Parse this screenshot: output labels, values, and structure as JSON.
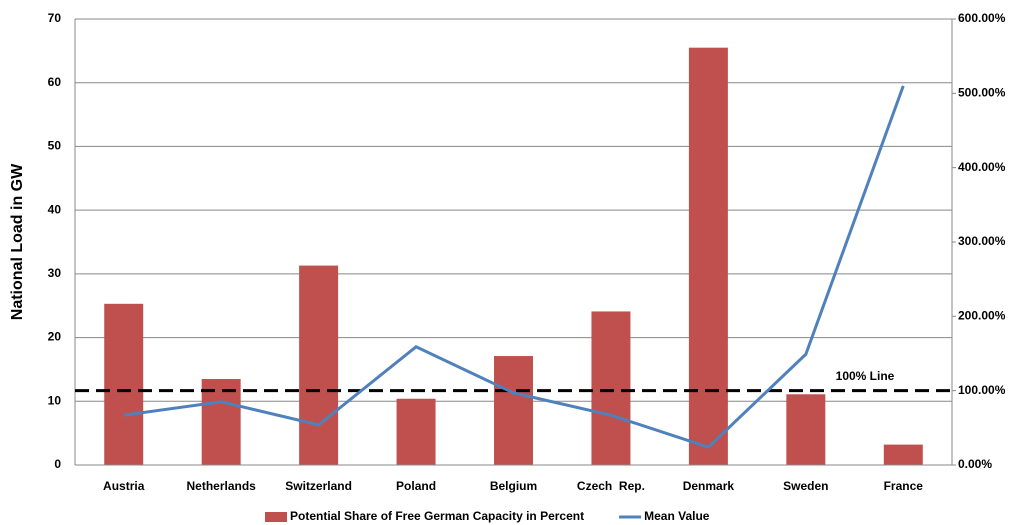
{
  "chart_data": {
    "type": "bar_line",
    "y_label": "National Load in GW",
    "categories": [
      "Austria",
      "Netherlands",
      "Switzerland",
      "Poland",
      "Belgium",
      "Czech  Rep.",
      "Denmark",
      "Sweden",
      "France"
    ],
    "series": [
      {
        "name": "Potential Share of Free German Capacity in Percent",
        "type": "bar",
        "color": "#c0504d",
        "values": [
          25.3,
          13.5,
          31.3,
          10.4,
          17.1,
          24.1,
          65.5,
          11.1,
          3.2
        ]
      },
      {
        "name": "Mean Value",
        "type": "line",
        "axis": "y2",
        "color": "#4f81bd",
        "values": [
          67,
          85,
          54,
          159,
          97,
          67,
          24,
          149,
          510
        ]
      }
    ],
    "reference_line": {
      "label": "100% Line",
      "value": 100,
      "axis": "y2"
    },
    "ylim": [
      0,
      70
    ],
    "yticks": [
      0,
      10,
      20,
      30,
      40,
      50,
      60,
      70
    ],
    "y2lim": [
      0,
      600
    ],
    "y2ticks": [
      {
        "value": 0,
        "label": "0.00%"
      },
      {
        "value": 100,
        "label": "100.00%"
      },
      {
        "value": 200,
        "label": "200.00%"
      },
      {
        "value": 300,
        "label": "300.00%"
      },
      {
        "value": 400,
        "label": "400.00%"
      },
      {
        "value": 500,
        "label": "500.00%"
      },
      {
        "value": 600,
        "label": "600.00%"
      }
    ],
    "grid": true,
    "legend": "bottom"
  }
}
